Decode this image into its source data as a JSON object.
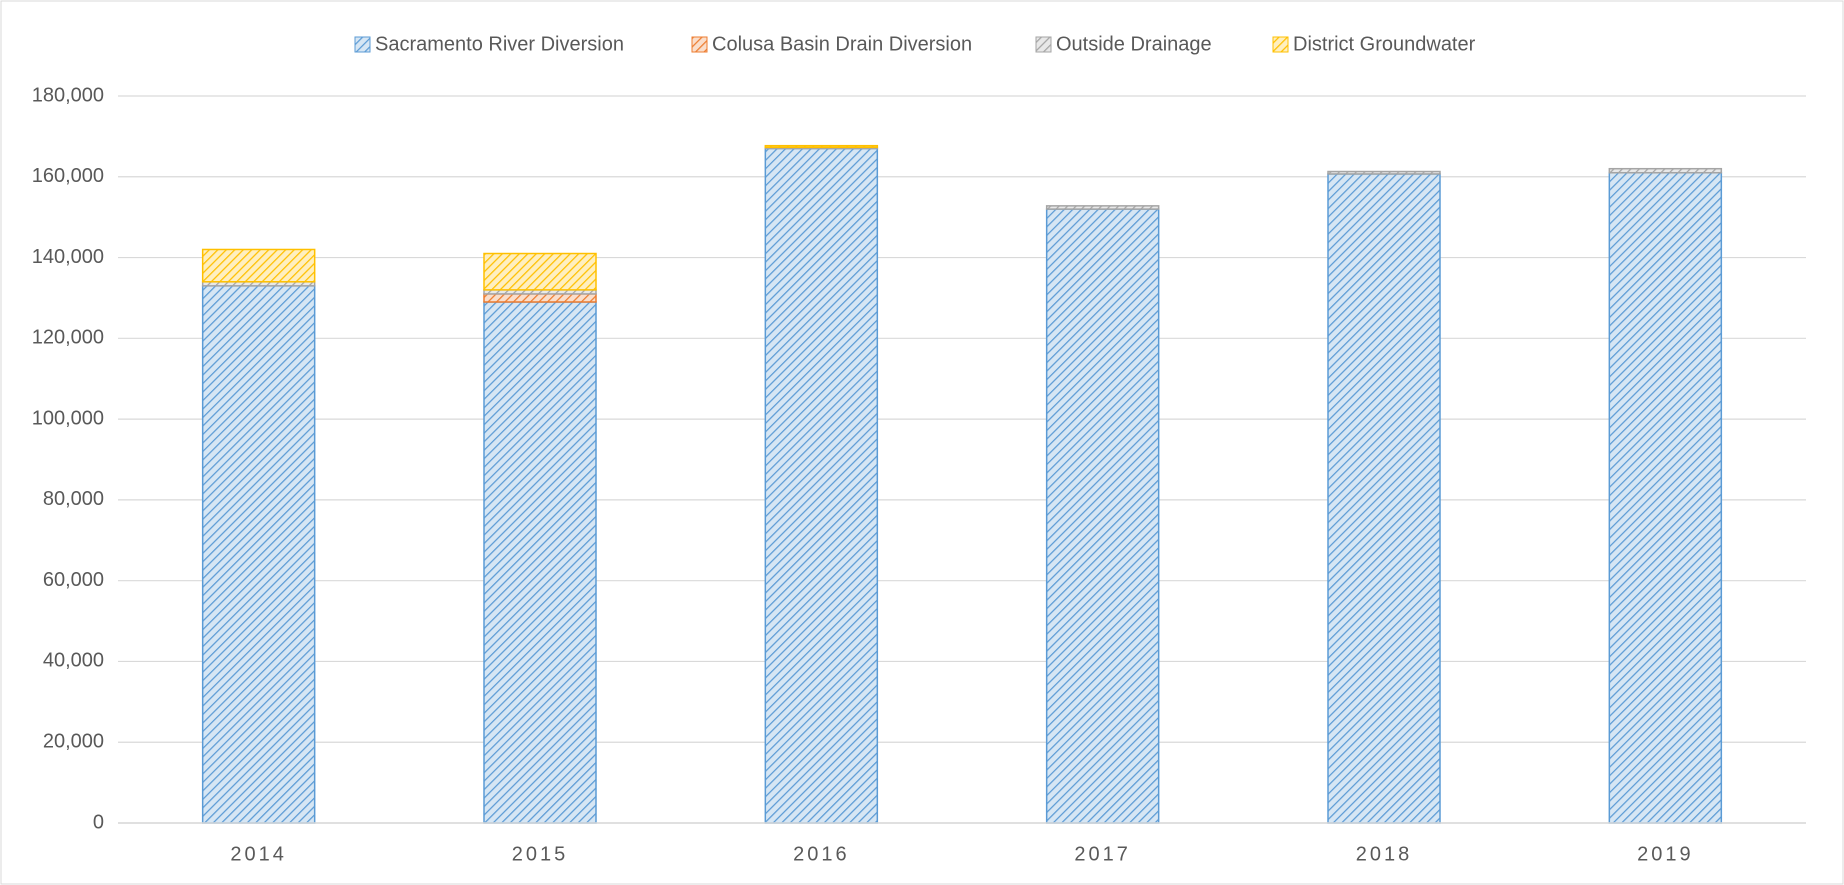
{
  "chart_data": {
    "type": "stacked-bar",
    "categories": [
      "2014",
      "2015",
      "2016",
      "2017",
      "2018",
      "2019"
    ],
    "series": [
      {
        "name": "Sacramento River Diversion",
        "color": "#5b9bd5",
        "values": [
          133000,
          129000,
          167000,
          152000,
          160700,
          161000
        ]
      },
      {
        "name": "Colusa Basin Drain Diversion",
        "color": "#ed7d31",
        "values": [
          0,
          2000,
          0,
          0,
          0,
          0
        ]
      },
      {
        "name": "Outside Drainage",
        "color": "#a5a5a5",
        "values": [
          1000,
          1000,
          300,
          800,
          600,
          1000
        ]
      },
      {
        "name": "District Groundwater",
        "color": "#ffc000",
        "values": [
          8000,
          9000,
          400,
          0,
          0,
          0
        ]
      }
    ],
    "ylim": [
      0,
      180000
    ],
    "yticks": [
      0,
      {
        "value": 20000,
        "label": "20,000"
      },
      {
        "value": 40000,
        "label": "40,000"
      },
      {
        "value": 60000,
        "label": "60,000"
      },
      {
        "value": 80000,
        "label": "80,000"
      },
      {
        "value": 100000,
        "label": "100,000"
      },
      {
        "value": 120000,
        "label": "120,000"
      },
      {
        "value": 140000,
        "label": "140,000"
      },
      {
        "value": 160000,
        "label": "160,000"
      },
      {
        "value": 180000,
        "label": "180,000"
      }
    ],
    "grid": true,
    "legend": "top"
  }
}
